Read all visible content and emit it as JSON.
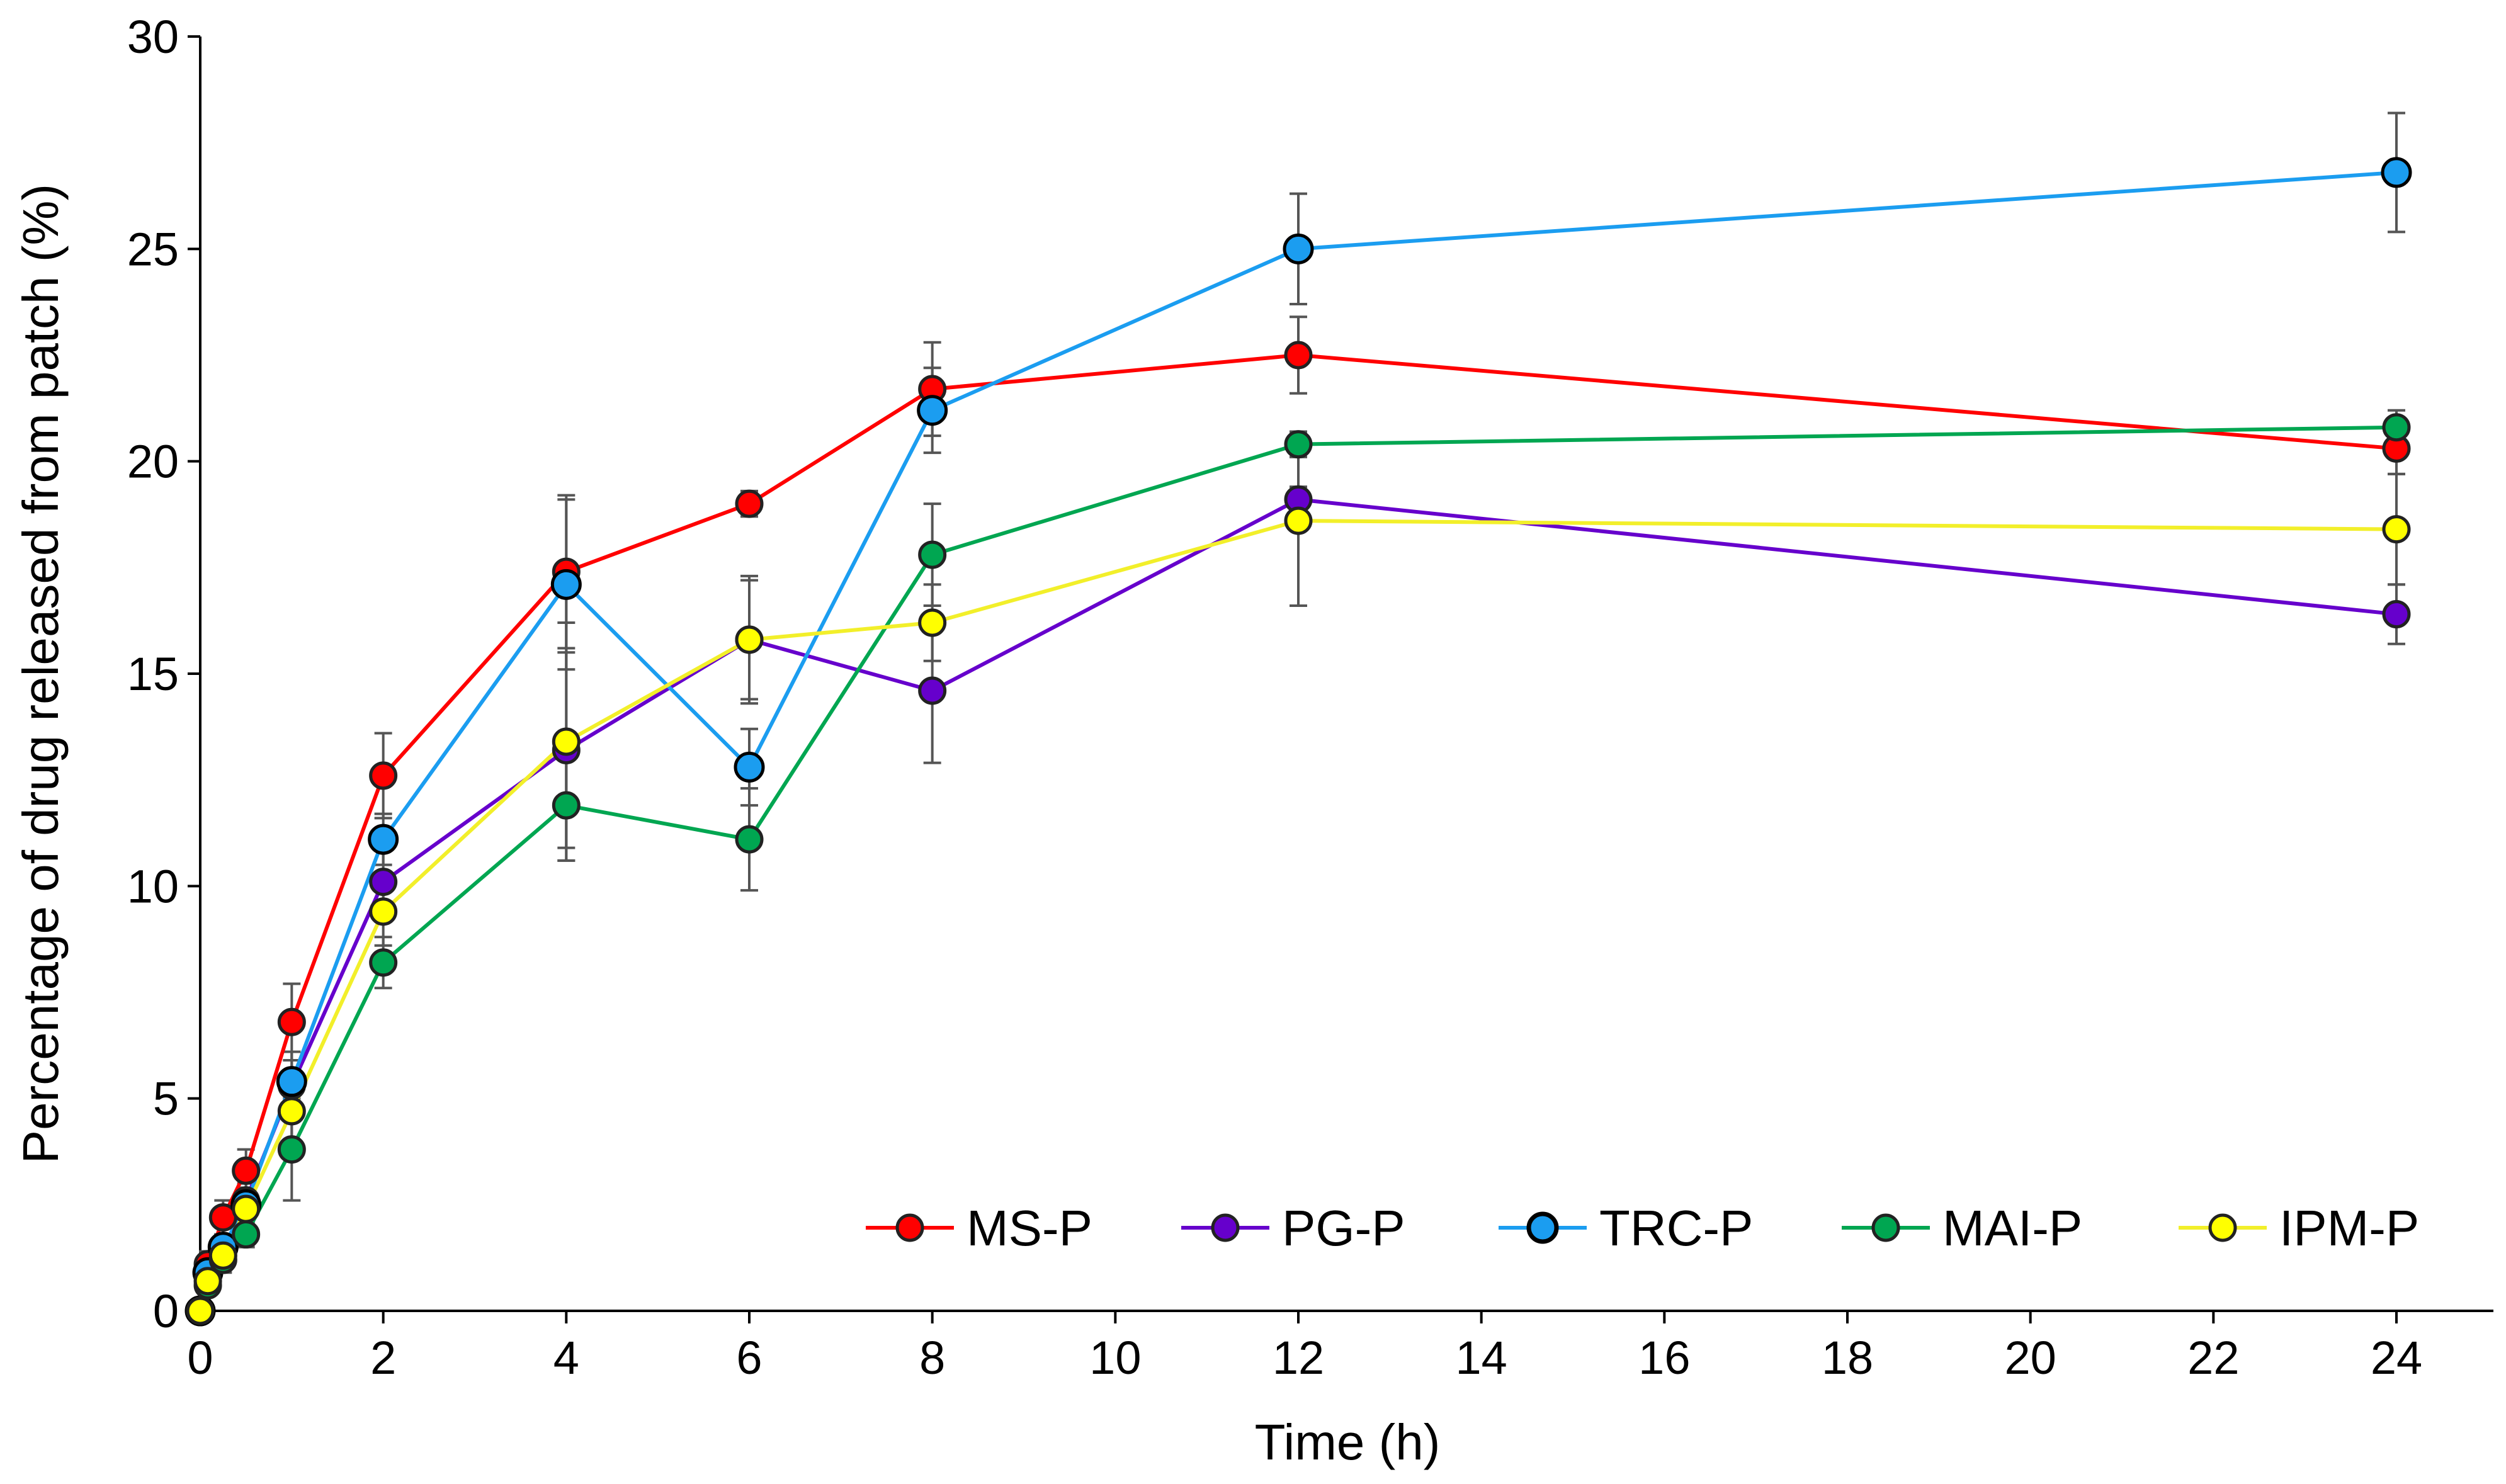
{
  "chart_data": {
    "type": "line",
    "title": "",
    "xlabel": "Time (h)",
    "ylabel": "Percentage of drug released from patch (%)",
    "xlim": [
      0,
      25
    ],
    "ylim": [
      0,
      30
    ],
    "grid": false,
    "legend_position": "bottom-right",
    "x_ticks": [
      0,
      2,
      4,
      6,
      8,
      10,
      12,
      14,
      16,
      18,
      20,
      22,
      24
    ],
    "y_ticks": [
      0,
      5,
      10,
      15,
      20,
      25,
      30
    ],
    "x": [
      0,
      0.083,
      0.25,
      0.5,
      1,
      2,
      4,
      6,
      8,
      12,
      24
    ],
    "series": [
      {
        "name": "MS-P",
        "color": "#ff0000",
        "marker_color": "#ff0000",
        "values": [
          0,
          1.1,
          2.2,
          3.3,
          6.8,
          12.6,
          17.4,
          19.0,
          21.7,
          22.5,
          20.3
        ],
        "errors": [
          0.1,
          0.3,
          0.4,
          0.5,
          0.9,
          1.0,
          1.8,
          0.3,
          1.1,
          0.9,
          0.6
        ]
      },
      {
        "name": "PG-P",
        "color": "#6600cc",
        "marker_color": "#6600cc",
        "values": [
          0,
          0.8,
          1.4,
          2.6,
          5.3,
          10.1,
          13.2,
          15.8,
          14.6,
          19.1,
          16.4
        ],
        "errors": [
          0.1,
          0.2,
          0.3,
          0.4,
          0.8,
          0.8,
          2.3,
          1.4,
          1.7,
          0.3,
          0.7
        ]
      },
      {
        "name": "TRC-P",
        "color": "#1b9df0",
        "marker_color": "#1b9df0",
        "values": [
          0,
          0.9,
          1.5,
          2.5,
          5.4,
          11.1,
          17.1,
          12.8,
          21.2,
          25.0,
          26.8
        ],
        "errors": [
          0.1,
          0.2,
          0.3,
          0.4,
          0.7,
          0.6,
          2.0,
          0.9,
          1.0,
          1.3,
          1.4
        ]
      },
      {
        "name": "MAI-P",
        "color": "#00a651",
        "marker_color": "#00a651",
        "values": [
          0,
          0.6,
          1.2,
          1.8,
          3.8,
          8.2,
          11.9,
          11.1,
          17.8,
          20.4,
          20.8
        ],
        "errors": [
          0.1,
          0.2,
          0.3,
          0.3,
          1.2,
          0.6,
          1.3,
          1.2,
          1.2,
          0.3,
          0.4
        ]
      },
      {
        "name": "IPM-P",
        "color": "#f2ef2a",
        "marker_color": "#ffff00",
        "values": [
          0,
          0.7,
          1.3,
          2.4,
          4.7,
          9.4,
          13.4,
          15.8,
          16.2,
          18.6,
          18.4
        ],
        "errors": [
          0.1,
          0.2,
          0.3,
          0.4,
          0.9,
          0.8,
          2.8,
          1.5,
          0.9,
          2.0,
          1.3
        ]
      }
    ]
  }
}
